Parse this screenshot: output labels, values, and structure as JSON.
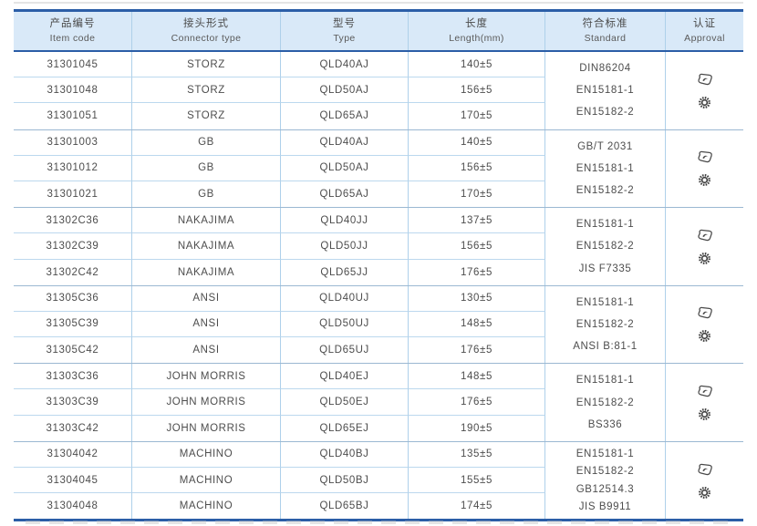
{
  "colors": {
    "accent": "#2b5ea7",
    "header_bg": "#d9e9f8",
    "row_line": "#bcd8ee",
    "group_line": "#9bb8d2",
    "text": "#4f4f4f"
  },
  "table": {
    "columns": [
      {
        "zh": "产品编号",
        "en": "Item code"
      },
      {
        "zh": "接头形式",
        "en": "Connector type"
      },
      {
        "zh": "型号",
        "en": "Type"
      },
      {
        "zh": "长度",
        "en": "Length(mm)"
      },
      {
        "zh": "符合标准",
        "en": "Standard"
      },
      {
        "zh": "认证",
        "en": "Approval"
      }
    ],
    "groups": [
      {
        "connector": "STORZ",
        "rows": [
          {
            "item": "31301045",
            "connector": "STORZ",
            "type": "QLD40AJ",
            "length": "140±5"
          },
          {
            "item": "31301048",
            "connector": "STORZ",
            "type": "QLD50AJ",
            "length": "156±5"
          },
          {
            "item": "31301051",
            "connector": "STORZ",
            "type": "QLD65AJ",
            "length": "170±5"
          }
        ],
        "standards": [
          "DIN86204",
          "EN15181-1",
          "EN15182-2"
        ],
        "approval_icons": [
          "certificate-stamp-icon",
          "seal-badge-icon"
        ]
      },
      {
        "connector": "GB",
        "rows": [
          {
            "item": "31301003",
            "connector": "GB",
            "type": "QLD40AJ",
            "length": "140±5"
          },
          {
            "item": "31301012",
            "connector": "GB",
            "type": "QLD50AJ",
            "length": "156±5"
          },
          {
            "item": "31301021",
            "connector": "GB",
            "type": "QLD65AJ",
            "length": "170±5"
          }
        ],
        "standards": [
          "GB/T 2031",
          "EN15181-1",
          "EN15182-2"
        ],
        "approval_icons": [
          "certificate-stamp-icon",
          "seal-badge-icon"
        ]
      },
      {
        "connector": "NAKAJIMA",
        "rows": [
          {
            "item": "31302C36",
            "connector": "NAKAJIMA",
            "type": "QLD40JJ",
            "length": "137±5"
          },
          {
            "item": "31302C39",
            "connector": "NAKAJIMA",
            "type": "QLD50JJ",
            "length": "156±5"
          },
          {
            "item": "31302C42",
            "connector": "NAKAJIMA",
            "type": "QLD65JJ",
            "length": "176±5"
          }
        ],
        "standards": [
          "EN15181-1",
          "EN15182-2",
          "JIS F7335"
        ],
        "approval_icons": [
          "certificate-stamp-icon",
          "seal-badge-icon"
        ]
      },
      {
        "connector": "ANSI",
        "rows": [
          {
            "item": "31305C36",
            "connector": "ANSI",
            "type": "QLD40UJ",
            "length": "130±5"
          },
          {
            "item": "31305C39",
            "connector": "ANSI",
            "type": "QLD50UJ",
            "length": "148±5"
          },
          {
            "item": "31305C42",
            "connector": "ANSI",
            "type": "QLD65UJ",
            "length": "176±5"
          }
        ],
        "standards": [
          "EN15181-1",
          "EN15182-2",
          "ANSI B:81-1"
        ],
        "approval_icons": [
          "certificate-stamp-icon",
          "seal-badge-icon"
        ]
      },
      {
        "connector": "JOHN MORRIS",
        "rows": [
          {
            "item": "31303C36",
            "connector": "JOHN MORRIS",
            "type": "QLD40EJ",
            "length": "148±5"
          },
          {
            "item": "31303C39",
            "connector": "JOHN MORRIS",
            "type": "QLD50EJ",
            "length": "176±5"
          },
          {
            "item": "31303C42",
            "connector": "JOHN MORRIS",
            "type": "QLD65EJ",
            "length": "190±5"
          }
        ],
        "standards": [
          "EN15181-1",
          "EN15182-2",
          "BS336"
        ],
        "approval_icons": [
          "certificate-stamp-icon",
          "seal-badge-icon"
        ]
      },
      {
        "connector": "MACHINO",
        "rows": [
          {
            "item": "31304042",
            "connector": "MACHINO",
            "type": "QLD40BJ",
            "length": "135±5"
          },
          {
            "item": "31304045",
            "connector": "MACHINO",
            "type": "QLD50BJ",
            "length": "155±5"
          },
          {
            "item": "31304048",
            "connector": "MACHINO",
            "type": "QLD65BJ",
            "length": "174±5"
          }
        ],
        "standards": [
          "EN15181-1",
          "EN15182-2",
          "GB12514.3",
          "JIS B9911"
        ],
        "approval_icons": [
          "certificate-stamp-icon",
          "seal-badge-icon"
        ]
      }
    ]
  }
}
